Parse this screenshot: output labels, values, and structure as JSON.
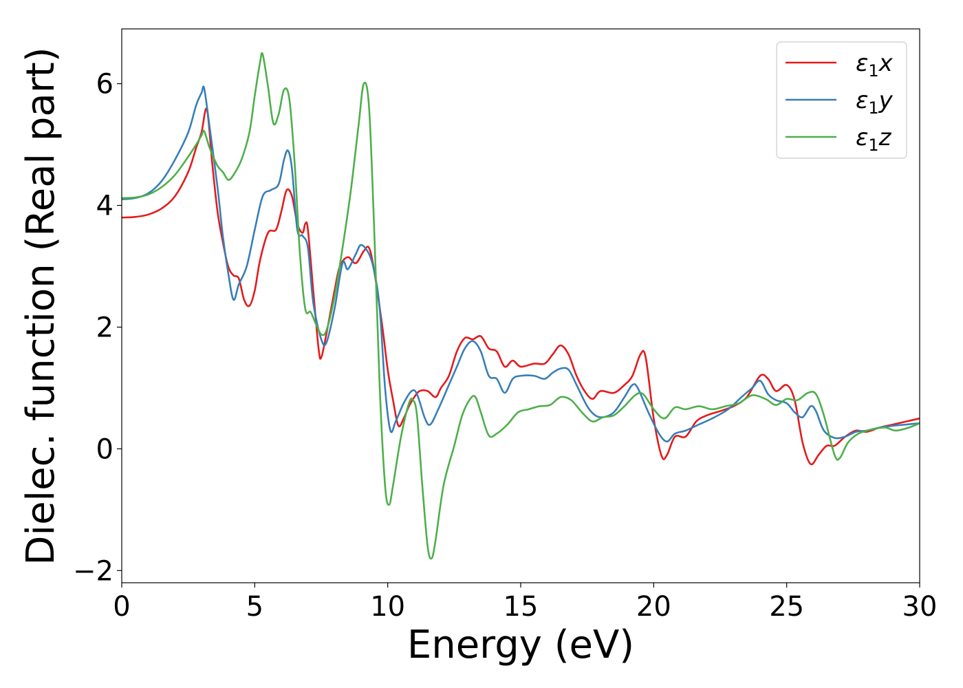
{
  "chart_data": {
    "type": "line",
    "xlabel": "Energy (eV)",
    "ylabel": "Dielec. function (Real part)",
    "xlim": [
      0,
      30
    ],
    "ylim": [
      -2.2,
      6.9
    ],
    "x_ticks": [
      0,
      5,
      10,
      15,
      20,
      25,
      30
    ],
    "x_tick_labels": [
      "0",
      "5",
      "10",
      "15",
      "20",
      "25",
      "30"
    ],
    "y_ticks": [
      -2,
      0,
      2,
      4,
      6
    ],
    "y_tick_labels": [
      "−2",
      "0",
      "2",
      "4",
      "6"
    ],
    "grid": false,
    "legend_position": "top-right",
    "series": [
      {
        "name": "ε₁x",
        "legend_main": "ε",
        "legend_sub": "1",
        "legend_tail": "x",
        "color": "#e41a1c",
        "points": [
          [
            0,
            3.8
          ],
          [
            0.5,
            3.81
          ],
          [
            1,
            3.85
          ],
          [
            1.5,
            3.95
          ],
          [
            2,
            4.15
          ],
          [
            2.5,
            4.55
          ],
          [
            2.8,
            4.95
          ],
          [
            3.0,
            5.2
          ],
          [
            3.2,
            5.58
          ],
          [
            3.4,
            4.7
          ],
          [
            3.6,
            3.9
          ],
          [
            3.8,
            3.4
          ],
          [
            4.0,
            3.0
          ],
          [
            4.2,
            2.85
          ],
          [
            4.4,
            2.8
          ],
          [
            4.6,
            2.45
          ],
          [
            4.8,
            2.35
          ],
          [
            5.0,
            2.6
          ],
          [
            5.2,
            3.1
          ],
          [
            5.5,
            3.55
          ],
          [
            5.8,
            3.6
          ],
          [
            6.0,
            3.9
          ],
          [
            6.2,
            4.25
          ],
          [
            6.4,
            4.15
          ],
          [
            6.6,
            3.7
          ],
          [
            6.8,
            3.55
          ],
          [
            6.9,
            3.7
          ],
          [
            7.0,
            3.6
          ],
          [
            7.2,
            2.6
          ],
          [
            7.4,
            1.65
          ],
          [
            7.5,
            1.5
          ],
          [
            7.7,
            1.9
          ],
          [
            8.0,
            2.6
          ],
          [
            8.2,
            3.0
          ],
          [
            8.5,
            3.15
          ],
          [
            8.8,
            3.05
          ],
          [
            9.1,
            3.25
          ],
          [
            9.3,
            3.3
          ],
          [
            9.5,
            2.9
          ],
          [
            9.8,
            2.0
          ],
          [
            10.0,
            1.3
          ],
          [
            10.2,
            0.8
          ],
          [
            10.4,
            0.38
          ],
          [
            10.6,
            0.5
          ],
          [
            10.8,
            0.7
          ],
          [
            11.0,
            0.85
          ],
          [
            11.2,
            0.95
          ],
          [
            11.5,
            0.95
          ],
          [
            11.8,
            0.85
          ],
          [
            12.0,
            1.0
          ],
          [
            12.3,
            1.2
          ],
          [
            12.6,
            1.6
          ],
          [
            12.9,
            1.82
          ],
          [
            13.2,
            1.8
          ],
          [
            13.5,
            1.85
          ],
          [
            13.8,
            1.65
          ],
          [
            14.1,
            1.6
          ],
          [
            14.4,
            1.35
          ],
          [
            14.7,
            1.45
          ],
          [
            15.0,
            1.35
          ],
          [
            15.5,
            1.4
          ],
          [
            15.9,
            1.4
          ],
          [
            16.2,
            1.55
          ],
          [
            16.5,
            1.7
          ],
          [
            16.8,
            1.55
          ],
          [
            17.1,
            1.2
          ],
          [
            17.4,
            0.95
          ],
          [
            17.7,
            0.82
          ],
          [
            18.0,
            0.95
          ],
          [
            18.5,
            0.92
          ],
          [
            18.9,
            1.05
          ],
          [
            19.2,
            1.2
          ],
          [
            19.5,
            1.55
          ],
          [
            19.7,
            1.5
          ],
          [
            20.0,
            0.5
          ],
          [
            20.3,
            -0.12
          ],
          [
            20.5,
            -0.1
          ],
          [
            20.8,
            0.2
          ],
          [
            21.2,
            0.2
          ],
          [
            21.6,
            0.45
          ],
          [
            22.0,
            0.55
          ],
          [
            22.5,
            0.62
          ],
          [
            23.0,
            0.7
          ],
          [
            23.5,
            0.85
          ],
          [
            24.0,
            1.2
          ],
          [
            24.3,
            1.15
          ],
          [
            24.6,
            0.95
          ],
          [
            25.0,
            1.05
          ],
          [
            25.3,
            0.8
          ],
          [
            25.6,
            0.1
          ],
          [
            25.9,
            -0.25
          ],
          [
            26.2,
            -0.1
          ],
          [
            26.5,
            0.05
          ],
          [
            26.8,
            0.05
          ],
          [
            27.2,
            0.2
          ],
          [
            27.6,
            0.3
          ],
          [
            28.0,
            0.28
          ],
          [
            28.5,
            0.35
          ],
          [
            29.0,
            0.4
          ],
          [
            29.5,
            0.45
          ],
          [
            30.0,
            0.5
          ]
        ]
      },
      {
        "name": "ε₁y",
        "legend_main": "ε",
        "legend_sub": "1",
        "legend_tail": "y",
        "color": "#377eb8",
        "points": [
          [
            0,
            4.1
          ],
          [
            0.5,
            4.12
          ],
          [
            1,
            4.2
          ],
          [
            1.5,
            4.4
          ],
          [
            2,
            4.75
          ],
          [
            2.5,
            5.2
          ],
          [
            2.8,
            5.65
          ],
          [
            3.0,
            5.85
          ],
          [
            3.1,
            5.92
          ],
          [
            3.3,
            5.3
          ],
          [
            3.6,
            4.3
          ],
          [
            3.8,
            3.5
          ],
          [
            4.0,
            2.9
          ],
          [
            4.2,
            2.45
          ],
          [
            4.4,
            2.7
          ],
          [
            4.7,
            3.0
          ],
          [
            5.0,
            3.6
          ],
          [
            5.3,
            4.15
          ],
          [
            5.6,
            4.25
          ],
          [
            5.9,
            4.35
          ],
          [
            6.1,
            4.75
          ],
          [
            6.25,
            4.9
          ],
          [
            6.4,
            4.6
          ],
          [
            6.6,
            3.6
          ],
          [
            6.8,
            3.5
          ],
          [
            7.0,
            3.3
          ],
          [
            7.2,
            2.4
          ],
          [
            7.5,
            1.8
          ],
          [
            7.7,
            1.75
          ],
          [
            8.0,
            2.3
          ],
          [
            8.3,
            3.05
          ],
          [
            8.5,
            2.95
          ],
          [
            8.8,
            3.2
          ],
          [
            9.0,
            3.35
          ],
          [
            9.3,
            3.2
          ],
          [
            9.5,
            2.9
          ],
          [
            9.7,
            2.3
          ],
          [
            9.9,
            1.0
          ],
          [
            10.1,
            0.3
          ],
          [
            10.3,
            0.45
          ],
          [
            10.6,
            0.75
          ],
          [
            10.9,
            0.95
          ],
          [
            11.1,
            0.9
          ],
          [
            11.4,
            0.5
          ],
          [
            11.6,
            0.4
          ],
          [
            11.9,
            0.65
          ],
          [
            12.3,
            1.05
          ],
          [
            12.6,
            1.35
          ],
          [
            12.9,
            1.65
          ],
          [
            13.2,
            1.77
          ],
          [
            13.5,
            1.6
          ],
          [
            13.8,
            1.2
          ],
          [
            14.1,
            1.15
          ],
          [
            14.4,
            0.92
          ],
          [
            14.7,
            1.15
          ],
          [
            15.0,
            1.2
          ],
          [
            15.5,
            1.2
          ],
          [
            15.9,
            1.15
          ],
          [
            16.2,
            1.25
          ],
          [
            16.5,
            1.32
          ],
          [
            16.8,
            1.3
          ],
          [
            17.1,
            1.05
          ],
          [
            17.5,
            0.7
          ],
          [
            17.8,
            0.55
          ],
          [
            18.1,
            0.52
          ],
          [
            18.5,
            0.6
          ],
          [
            18.9,
            0.85
          ],
          [
            19.2,
            1.05
          ],
          [
            19.4,
            1.0
          ],
          [
            19.8,
            0.6
          ],
          [
            20.2,
            0.25
          ],
          [
            20.5,
            0.12
          ],
          [
            20.8,
            0.25
          ],
          [
            21.2,
            0.3
          ],
          [
            21.7,
            0.4
          ],
          [
            22.2,
            0.5
          ],
          [
            22.8,
            0.65
          ],
          [
            23.3,
            0.85
          ],
          [
            23.7,
            1.0
          ],
          [
            24.0,
            1.12
          ],
          [
            24.3,
            0.9
          ],
          [
            24.6,
            0.8
          ],
          [
            25.0,
            0.75
          ],
          [
            25.3,
            0.6
          ],
          [
            25.6,
            0.52
          ],
          [
            25.9,
            0.7
          ],
          [
            26.1,
            0.62
          ],
          [
            26.4,
            0.3
          ],
          [
            26.8,
            0.18
          ],
          [
            27.2,
            0.2
          ],
          [
            27.6,
            0.28
          ],
          [
            28.0,
            0.3
          ],
          [
            28.5,
            0.35
          ],
          [
            29.0,
            0.38
          ],
          [
            29.5,
            0.4
          ],
          [
            30.0,
            0.42
          ]
        ]
      },
      {
        "name": "ε₁z",
        "legend_main": "ε",
        "legend_sub": "1",
        "legend_tail": "z",
        "color": "#4daf4a",
        "points": [
          [
            0,
            4.12
          ],
          [
            0.5,
            4.13
          ],
          [
            1,
            4.18
          ],
          [
            1.5,
            4.3
          ],
          [
            2,
            4.5
          ],
          [
            2.5,
            4.8
          ],
          [
            2.8,
            5.0
          ],
          [
            3.0,
            5.15
          ],
          [
            3.1,
            5.22
          ],
          [
            3.3,
            4.95
          ],
          [
            3.6,
            4.65
          ],
          [
            3.8,
            4.55
          ],
          [
            4.0,
            4.42
          ],
          [
            4.2,
            4.5
          ],
          [
            4.5,
            4.75
          ],
          [
            4.8,
            5.2
          ],
          [
            5.0,
            5.8
          ],
          [
            5.2,
            6.35
          ],
          [
            5.3,
            6.48
          ],
          [
            5.5,
            5.95
          ],
          [
            5.7,
            5.35
          ],
          [
            5.9,
            5.5
          ],
          [
            6.1,
            5.9
          ],
          [
            6.3,
            5.75
          ],
          [
            6.5,
            4.7
          ],
          [
            6.7,
            3.2
          ],
          [
            6.9,
            2.3
          ],
          [
            7.1,
            2.25
          ],
          [
            7.3,
            2.05
          ],
          [
            7.5,
            1.88
          ],
          [
            7.7,
            1.95
          ],
          [
            8.0,
            2.5
          ],
          [
            8.3,
            3.3
          ],
          [
            8.6,
            4.2
          ],
          [
            8.9,
            5.3
          ],
          [
            9.1,
            6.0
          ],
          [
            9.3,
            5.6
          ],
          [
            9.5,
            3.5
          ],
          [
            9.7,
            1.0
          ],
          [
            9.9,
            -0.6
          ],
          [
            10.05,
            -0.92
          ],
          [
            10.2,
            -0.6
          ],
          [
            10.5,
            0.2
          ],
          [
            10.8,
            0.75
          ],
          [
            10.95,
            0.8
          ],
          [
            11.1,
            0.55
          ],
          [
            11.3,
            -0.6
          ],
          [
            11.5,
            -1.6
          ],
          [
            11.65,
            -1.8
          ],
          [
            11.8,
            -1.5
          ],
          [
            12.1,
            -0.6
          ],
          [
            12.5,
            0.05
          ],
          [
            12.8,
            0.55
          ],
          [
            13.1,
            0.82
          ],
          [
            13.3,
            0.85
          ],
          [
            13.5,
            0.6
          ],
          [
            13.8,
            0.22
          ],
          [
            14.1,
            0.25
          ],
          [
            14.5,
            0.4
          ],
          [
            14.9,
            0.6
          ],
          [
            15.3,
            0.65
          ],
          [
            15.7,
            0.7
          ],
          [
            16.1,
            0.72
          ],
          [
            16.5,
            0.85
          ],
          [
            16.9,
            0.8
          ],
          [
            17.3,
            0.6
          ],
          [
            17.7,
            0.45
          ],
          [
            18.1,
            0.52
          ],
          [
            18.5,
            0.55
          ],
          [
            18.9,
            0.7
          ],
          [
            19.3,
            0.88
          ],
          [
            19.6,
            0.9
          ],
          [
            20.0,
            0.65
          ],
          [
            20.4,
            0.5
          ],
          [
            20.8,
            0.68
          ],
          [
            21.2,
            0.65
          ],
          [
            21.7,
            0.7
          ],
          [
            22.2,
            0.65
          ],
          [
            22.7,
            0.7
          ],
          [
            23.2,
            0.75
          ],
          [
            23.7,
            0.88
          ],
          [
            24.2,
            0.82
          ],
          [
            24.6,
            0.72
          ],
          [
            25.0,
            0.82
          ],
          [
            25.4,
            0.8
          ],
          [
            25.8,
            0.92
          ],
          [
            26.1,
            0.9
          ],
          [
            26.4,
            0.55
          ],
          [
            26.8,
            -0.1
          ],
          [
            27.0,
            -0.15
          ],
          [
            27.3,
            0.1
          ],
          [
            27.7,
            0.25
          ],
          [
            28.2,
            0.32
          ],
          [
            28.7,
            0.35
          ],
          [
            29.1,
            0.3
          ],
          [
            29.6,
            0.35
          ],
          [
            30.0,
            0.42
          ]
        ]
      }
    ]
  }
}
